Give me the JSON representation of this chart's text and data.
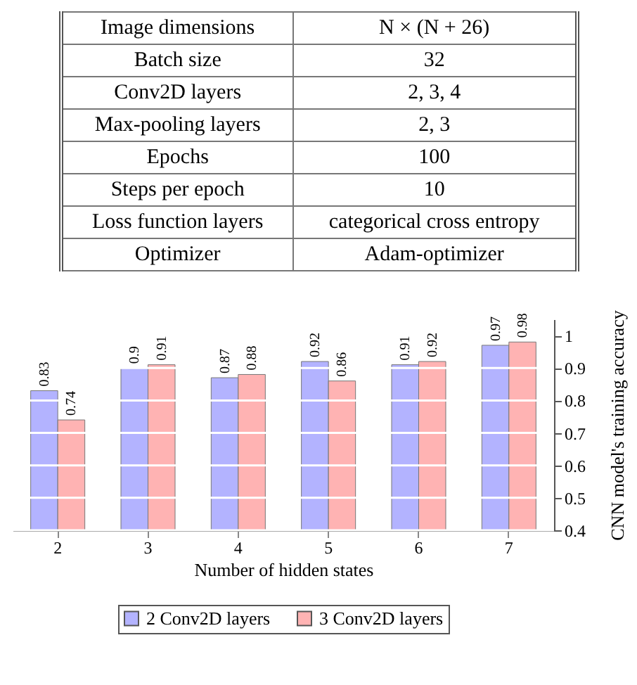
{
  "chart_data": [
    {
      "type": "other",
      "annotations": [
        "Image dimensions",
        "N × (N + 26)",
        "Batch size",
        "32",
        "Conv2D layers",
        "2, 3, 4",
        "Max-pooling layers",
        "2, 3",
        "Epochs",
        "100",
        "Steps per epoch",
        "10",
        "Loss function layers",
        "categorical cross entropy",
        "Optimizer",
        "Adam-optimizer"
      ]
    },
    {
      "type": "bar",
      "categories": [
        "2",
        "3",
        "4",
        "5",
        "6",
        "7"
      ],
      "xlabel": "Number of hidden states",
      "ylabel": "CNN model's training accuracy",
      "ylim": [
        0.4,
        1.05
      ],
      "yticks": [
        0.4,
        0.5,
        0.6,
        0.7,
        0.8,
        0.9,
        {
          "value": 1,
          "label": "1"
        }
      ],
      "grid": "y",
      "legend": "bottom",
      "data_labels": true,
      "series": [
        {
          "name": "2 Conv2D layers",
          "color": "#b3b3ff",
          "values": [
            0.83,
            0.9,
            0.87,
            0.92,
            0.91,
            0.97
          ]
        },
        {
          "name": "3 Conv2D layers",
          "color": "#ffb3b3",
          "values": [
            0.74,
            0.91,
            0.88,
            0.86,
            0.92,
            0.98
          ]
        }
      ]
    }
  ]
}
